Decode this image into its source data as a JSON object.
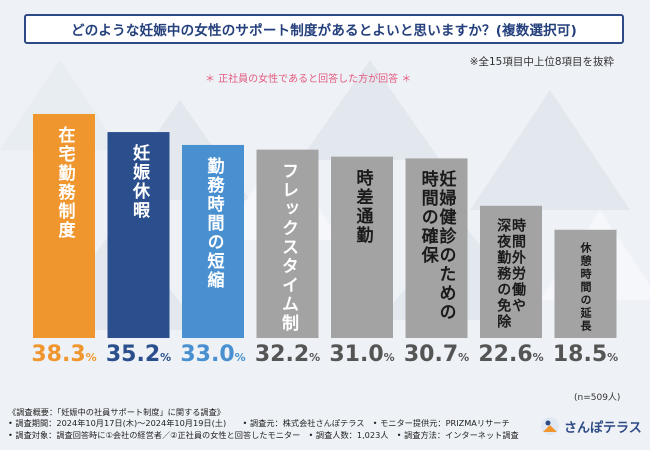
{
  "title": "どのような妊娠中の女性のサポート制度があるとよいと思いますか？(複数選択可)",
  "note_top": "※全15項目中上位8項目を抜粋",
  "note_sub": "＊ 正社員の女性であると回答した方が回答 ＊",
  "chart_data": {
    "type": "bar",
    "title": "どのような妊娠中の女性のサポート制度があるとよいと思いますか？(複数選択可)",
    "categories": [
      "在宅勤務制度",
      "妊娠休暇",
      "勤務時間の短縮",
      "フレックスタイム制",
      "時差通勤",
      "妊婦健診のための時間の確保",
      "時間外労働や深夜勤務の免除",
      "休憩時間の延長"
    ],
    "values": [
      38.3,
      35.2,
      33.0,
      32.2,
      31.0,
      30.7,
      22.6,
      18.5
    ],
    "value_labels": [
      "38.3",
      "35.2",
      "33.0",
      "32.2",
      "31.0",
      "30.7",
      "22.6",
      "18.5"
    ],
    "label_columns": [
      [
        "在宅勤務制度"
      ],
      [
        "妊娠休暇"
      ],
      [
        "勤務時間の短縮"
      ],
      [
        "フレックスタイム制"
      ],
      [
        "時差通勤"
      ],
      [
        "妊婦健診のための",
        "時間の確保"
      ],
      [
        "時間外労働や",
        "深夜勤務の免除"
      ],
      [
        "休憩時間の延長"
      ]
    ],
    "unit": "%",
    "bar_colors": [
      "#f0962f",
      "#2a4f8c",
      "#4990d0",
      "#a3a3a3",
      "#a3a3a3",
      "#a3a3a3",
      "#a3a3a3",
      "#a3a3a3"
    ],
    "value_colors": [
      "#f0962f",
      "#2a4f8c",
      "#4990d0",
      "#555555",
      "#555555",
      "#555555",
      "#555555",
      "#555555"
    ],
    "label_colors": [
      "#ffffff",
      "#ffffff",
      "#ffffff",
      "#ffffff",
      "#1a1a1a",
      "#1a1a1a",
      "#1a1a1a",
      "#1a1a1a"
    ],
    "ylim": [
      0,
      40
    ],
    "n_note": "(n=509人)"
  },
  "footer": {
    "line1": "《調査概要：「妊娠中の社員サポート制度」に関する調査》",
    "line2": "• 調査期間：2024年10月17日(木)〜2024年10月19日(土)　　• 調査元：株式会社さんぽテラス　• モニター提供元：PRIZMAリサーチ",
    "line3": "• 調査対象：調査回答時に①会社の経営者／②正社員の女性と回答したモニター　• 調査人数：1,023人　• 調査方法：インターネット調査"
  },
  "logo": {
    "text": "さんぽテラス",
    "icon": "sanpo-terrace-logo-icon"
  }
}
